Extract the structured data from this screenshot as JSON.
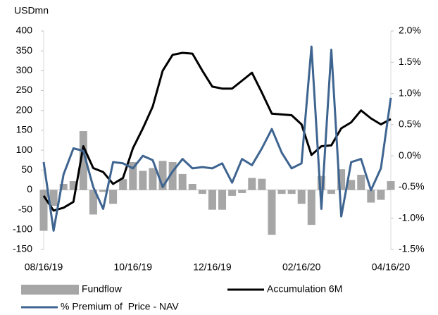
{
  "chart_data": {
    "type": "bar",
    "y_axis_label": "USDmn",
    "categories": [
      "08/16/19",
      null,
      null,
      null,
      null,
      null,
      null,
      null,
      null,
      "10/16/19",
      null,
      null,
      null,
      null,
      null,
      null,
      null,
      "12/16/19",
      null,
      null,
      null,
      null,
      null,
      null,
      null,
      null,
      "02/16/20",
      null,
      null,
      null,
      null,
      null,
      null,
      null,
      null,
      "04/16/20"
    ],
    "ylim": [
      -150,
      400
    ],
    "yticks": [
      400,
      350,
      300,
      250,
      200,
      150,
      100,
      50,
      0,
      -50,
      -100,
      -150
    ],
    "y2lim": [
      -1.5,
      2
    ],
    "y2ticks": [
      {
        "value": 2,
        "label": "2.0%"
      },
      {
        "value": 1.5,
        "label": "1.5%"
      },
      {
        "value": 1,
        "label": "1.0%"
      },
      {
        "value": 0.5,
        "label": "0.5%"
      },
      {
        "value": 0,
        "label": "0.0%"
      },
      {
        "value": -0.5,
        "label": "-0.5%"
      },
      {
        "value": -1,
        "label": "-1.0%"
      },
      {
        "value": -1.5,
        "label": "-1.5%"
      }
    ],
    "series": [
      {
        "name": "Fundflow",
        "type": "bar",
        "color": "#a6a6a6",
        "values": [
          -103,
          -40,
          15,
          22,
          148,
          -62,
          -5,
          -35,
          27,
          70,
          48,
          55,
          73,
          70,
          40,
          15,
          -10,
          -50,
          -50,
          -15,
          -8,
          30,
          28,
          -113,
          -10,
          -10,
          -35,
          -88,
          35,
          -10,
          52,
          25,
          38,
          -32,
          -25,
          22
        ]
      },
      {
        "name": "Accumulation 6M",
        "type": "line",
        "color": "#000000",
        "values": [
          -15,
          -52,
          -45,
          -30,
          110,
          55,
          45,
          15,
          30,
          105,
          155,
          210,
          300,
          340,
          345,
          343,
          300,
          260,
          255,
          255,
          275,
          295,
          245,
          192,
          190,
          188,
          165,
          88,
          110,
          112,
          155,
          170,
          200,
          180,
          165,
          178
        ]
      },
      {
        "name": "% Premium of  Price - NAV",
        "type": "line",
        "axis": "y2",
        "color": "#3e6490",
        "values": [
          -0.1,
          -1.2,
          -0.3,
          0.12,
          0.08,
          -0.5,
          -0.85,
          -0.1,
          -0.12,
          -0.2,
          0.0,
          -0.07,
          -0.5,
          -0.25,
          -0.05,
          -0.2,
          -0.18,
          -0.2,
          -0.12,
          -0.43,
          -0.05,
          -0.15,
          0.12,
          0.43,
          0.05,
          -0.2,
          -0.12,
          1.75,
          -0.85,
          1.7,
          -0.97,
          -0.1,
          -0.05,
          -0.55,
          -0.2,
          0.93
        ]
      }
    ]
  }
}
